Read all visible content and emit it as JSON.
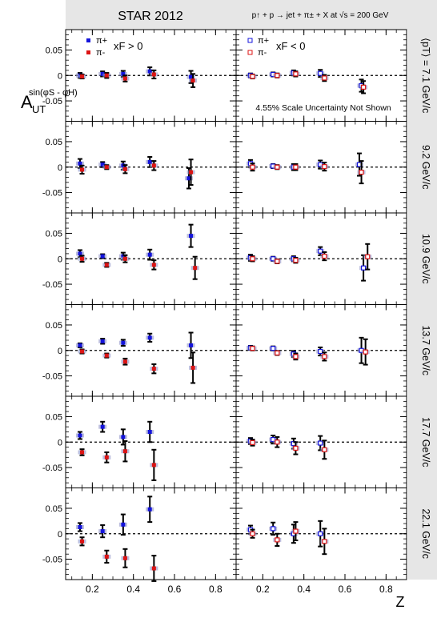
{
  "header": {
    "title": "STAR 2012",
    "process": "p↑ + p → jet + π± + X at √s = 200 GeV"
  },
  "yaxis_title": {
    "main": "A",
    "sub": "UT",
    "sup": "sin(φS - φH)"
  },
  "xaxis_title": "Z",
  "legend_left": {
    "pip": "π+",
    "pim": "π-",
    "cond": "xF > 0"
  },
  "legend_right": {
    "pip": "π+",
    "pim": "π-",
    "cond": "xF < 0"
  },
  "scale_note": "4.55% Scale Uncertainty Not Shown",
  "row_labels": [
    "⟨pT⟩ = 7.1 GeV/c",
    "9.2 GeV/c",
    "10.9 GeV/c",
    "13.7 GeV/c",
    "17.7 GeV/c",
    "22.1 GeV/c"
  ],
  "colors": {
    "pip": "#1414dc",
    "pim": "#dc1414",
    "header_bg": "#e6e6e6",
    "syst_box": "#8f93c8"
  },
  "chart_data": {
    "type": "scatter",
    "xlim": [
      0.07,
      0.9
    ],
    "ylim": [
      -0.09,
      0.09
    ],
    "xticks": [
      0.2,
      0.4,
      0.6,
      0.8
    ],
    "yticks": [
      -0.05,
      0,
      0.05
    ],
    "ytick_labels": [
      "-0.05",
      "0",
      "0.05"
    ],
    "xtick_labels": [
      "0.2",
      "0.4",
      "0.6",
      "0.8"
    ],
    "reference_line": 0,
    "panels": [
      {
        "row": 0,
        "xf": "> 0",
        "pip": [
          [
            0.14,
            0.0,
            0.005
          ],
          [
            0.25,
            0.003,
            0.005
          ],
          [
            0.35,
            0.003,
            0.006
          ],
          [
            0.48,
            0.008,
            0.008
          ],
          [
            0.68,
            -0.003,
            0.012
          ]
        ],
        "pim": [
          [
            0.15,
            -0.002,
            0.004
          ],
          [
            0.27,
            0.0,
            0.005
          ],
          [
            0.36,
            -0.006,
            0.006
          ],
          [
            0.5,
            0.002,
            0.008
          ],
          [
            0.69,
            -0.01,
            0.013
          ]
        ]
      },
      {
        "row": 0,
        "xf": "< 0",
        "pip": [
          [
            0.14,
            0.0,
            0.004
          ],
          [
            0.25,
            0.002,
            0.004
          ],
          [
            0.35,
            0.005,
            0.005
          ],
          [
            0.48,
            0.004,
            0.007
          ],
          [
            0.68,
            -0.02,
            0.012
          ]
        ],
        "pim": [
          [
            0.15,
            -0.002,
            0.004
          ],
          [
            0.27,
            0.0,
            0.004
          ],
          [
            0.36,
            0.003,
            0.005
          ],
          [
            0.5,
            -0.005,
            0.006
          ],
          [
            0.69,
            -0.023,
            0.012
          ]
        ]
      },
      {
        "row": 1,
        "xf": "> 0",
        "pip": [
          [
            0.14,
            0.007,
            0.009
          ],
          [
            0.25,
            0.005,
            0.005
          ],
          [
            0.35,
            0.003,
            0.008
          ],
          [
            0.48,
            0.01,
            0.01
          ],
          [
            0.67,
            -0.022,
            0.02
          ]
        ],
        "pim": [
          [
            0.15,
            -0.005,
            0.008
          ],
          [
            0.27,
            0.0,
            0.004
          ],
          [
            0.36,
            -0.004,
            0.008
          ],
          [
            0.5,
            0.003,
            0.009
          ],
          [
            0.68,
            -0.01,
            0.025
          ]
        ]
      },
      {
        "row": 1,
        "xf": "< 0",
        "pip": [
          [
            0.14,
            0.007,
            0.007
          ],
          [
            0.25,
            0.002,
            0.004
          ],
          [
            0.35,
            0.0,
            0.006
          ],
          [
            0.48,
            0.005,
            0.008
          ],
          [
            0.67,
            0.005,
            0.022
          ]
        ],
        "pim": [
          [
            0.15,
            0.0,
            0.007
          ],
          [
            0.27,
            0.0,
            0.004
          ],
          [
            0.36,
            0.0,
            0.006
          ],
          [
            0.5,
            0.001,
            0.008
          ],
          [
            0.68,
            -0.01,
            0.022
          ]
        ]
      },
      {
        "row": 2,
        "xf": "> 0",
        "pip": [
          [
            0.14,
            0.01,
            0.007
          ],
          [
            0.25,
            0.005,
            0.004
          ],
          [
            0.35,
            0.005,
            0.007
          ],
          [
            0.48,
            0.008,
            0.01
          ],
          [
            0.68,
            0.045,
            0.022
          ]
        ],
        "pim": [
          [
            0.15,
            0.0,
            0.006
          ],
          [
            0.27,
            -0.012,
            0.004
          ],
          [
            0.36,
            0.0,
            0.007
          ],
          [
            0.5,
            -0.012,
            0.009
          ],
          [
            0.7,
            -0.018,
            0.022
          ]
        ]
      },
      {
        "row": 2,
        "xf": "< 0",
        "pip": [
          [
            0.14,
            0.002,
            0.006
          ],
          [
            0.25,
            0.0,
            0.004
          ],
          [
            0.35,
            0.0,
            0.005
          ],
          [
            0.48,
            0.015,
            0.008
          ],
          [
            0.69,
            -0.018,
            0.025
          ]
        ],
        "pim": [
          [
            0.15,
            0.0,
            0.005
          ],
          [
            0.27,
            -0.005,
            0.004
          ],
          [
            0.36,
            -0.003,
            0.005
          ],
          [
            0.5,
            0.005,
            0.008
          ],
          [
            0.71,
            0.004,
            0.025
          ]
        ]
      },
      {
        "row": 3,
        "xf": "> 0",
        "pip": [
          [
            0.14,
            0.01,
            0.004
          ],
          [
            0.25,
            0.018,
            0.005
          ],
          [
            0.35,
            0.015,
            0.006
          ],
          [
            0.48,
            0.025,
            0.008
          ],
          [
            0.68,
            0.01,
            0.025
          ]
        ],
        "pim": [
          [
            0.15,
            -0.002,
            0.004
          ],
          [
            0.27,
            -0.01,
            0.004
          ],
          [
            0.36,
            -0.022,
            0.006
          ],
          [
            0.5,
            -0.036,
            0.009
          ],
          [
            0.69,
            -0.034,
            0.03
          ]
        ]
      },
      {
        "row": 3,
        "xf": "< 0",
        "pip": [
          [
            0.14,
            0.005,
            0.004
          ],
          [
            0.25,
            0.004,
            0.004
          ],
          [
            0.35,
            -0.007,
            0.006
          ],
          [
            0.48,
            -0.002,
            0.008
          ],
          [
            0.68,
            0.0,
            0.025
          ]
        ],
        "pim": [
          [
            0.15,
            0.004,
            0.004
          ],
          [
            0.27,
            -0.005,
            0.004
          ],
          [
            0.36,
            -0.012,
            0.006
          ],
          [
            0.5,
            -0.012,
            0.008
          ],
          [
            0.7,
            -0.003,
            0.025
          ]
        ]
      },
      {
        "row": 4,
        "xf": "> 0",
        "pip": [
          [
            0.14,
            0.013,
            0.007
          ],
          [
            0.25,
            0.03,
            0.01
          ],
          [
            0.35,
            0.01,
            0.015
          ],
          [
            0.48,
            0.02,
            0.02
          ]
        ],
        "pim": [
          [
            0.15,
            -0.02,
            0.006
          ],
          [
            0.27,
            -0.03,
            0.01
          ],
          [
            0.36,
            -0.018,
            0.02
          ],
          [
            0.5,
            -0.045,
            0.03
          ]
        ]
      },
      {
        "row": 4,
        "xf": "< 0",
        "pip": [
          [
            0.14,
            0.002,
            0.006
          ],
          [
            0.25,
            0.005,
            0.008
          ],
          [
            0.35,
            -0.003,
            0.01
          ],
          [
            0.48,
            -0.002,
            0.014
          ]
        ],
        "pim": [
          [
            0.15,
            -0.001,
            0.006
          ],
          [
            0.27,
            0.0,
            0.01
          ],
          [
            0.36,
            -0.012,
            0.012
          ],
          [
            0.5,
            -0.015,
            0.018
          ]
        ]
      },
      {
        "row": 5,
        "xf": "> 0",
        "pip": [
          [
            0.14,
            0.013,
            0.008
          ],
          [
            0.25,
            0.005,
            0.012
          ],
          [
            0.35,
            0.018,
            0.02
          ],
          [
            0.48,
            0.048,
            0.025
          ]
        ],
        "pim": [
          [
            0.15,
            -0.015,
            0.008
          ],
          [
            0.27,
            -0.045,
            0.012
          ],
          [
            0.36,
            -0.048,
            0.018
          ],
          [
            0.5,
            -0.068,
            0.025
          ]
        ]
      },
      {
        "row": 5,
        "xf": "< 0",
        "pip": [
          [
            0.14,
            0.008,
            0.008
          ],
          [
            0.25,
            0.01,
            0.012
          ],
          [
            0.35,
            0.0,
            0.018
          ],
          [
            0.48,
            0.0,
            0.025
          ]
        ],
        "pim": [
          [
            0.15,
            0.0,
            0.008
          ],
          [
            0.27,
            -0.012,
            0.012
          ],
          [
            0.36,
            0.005,
            0.018
          ],
          [
            0.5,
            -0.015,
            0.025
          ]
        ]
      }
    ]
  }
}
